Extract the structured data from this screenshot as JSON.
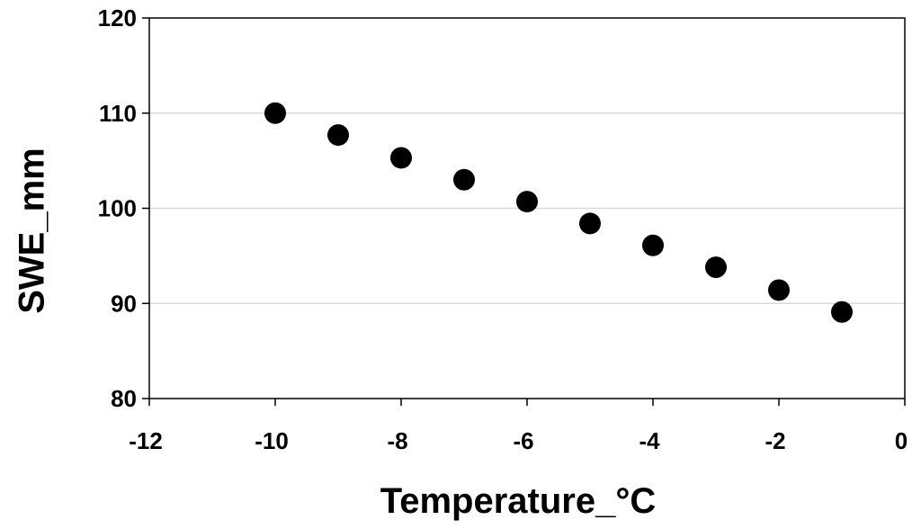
{
  "chart_data": {
    "type": "scatter",
    "title": "",
    "xlabel": "Temperature_°C",
    "ylabel": "SWE_mm",
    "xlim": [
      -12,
      0
    ],
    "ylim": [
      80,
      120
    ],
    "xticks": [
      -12,
      -10,
      -8,
      -6,
      -4,
      -2,
      0
    ],
    "yticks": [
      80,
      90,
      100,
      110,
      120
    ],
    "grid": {
      "horizontal": true,
      "vertical": false
    },
    "legend": "none",
    "points": [
      {
        "x": -10,
        "y": 110.0
      },
      {
        "x": -9,
        "y": 107.7
      },
      {
        "x": -8,
        "y": 105.3
      },
      {
        "x": -7,
        "y": 103.0
      },
      {
        "x": -6,
        "y": 100.7
      },
      {
        "x": -5,
        "y": 98.4
      },
      {
        "x": -4,
        "y": 96.1
      },
      {
        "x": -3,
        "y": 93.8
      },
      {
        "x": -2,
        "y": 91.4
      },
      {
        "x": -1,
        "y": 89.1
      }
    ],
    "colors": {
      "marker": "#000000",
      "gridline": "#d9d9d9",
      "axis": "#000000",
      "frame": "#000000"
    }
  }
}
